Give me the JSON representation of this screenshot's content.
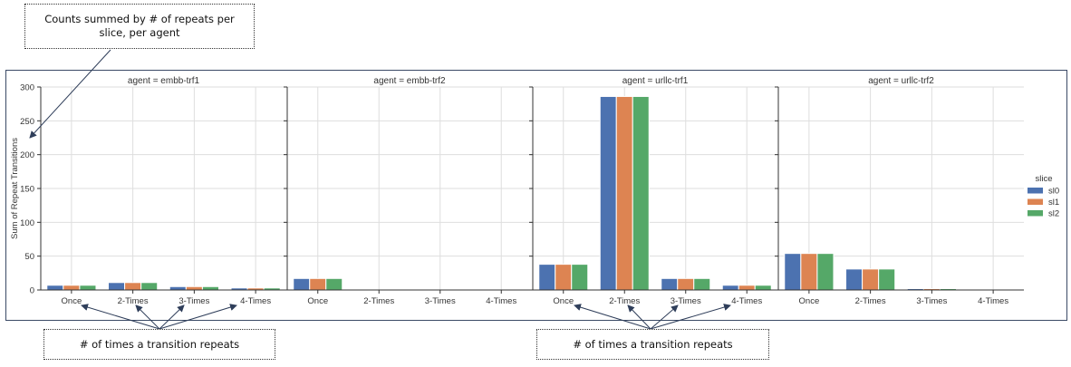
{
  "annotations": {
    "top_note": "Counts summed by # of repeats per slice, per agent",
    "bottom_left_note": "# of times a transition repeats",
    "bottom_right_note": "# of times a transition repeats"
  },
  "chart_data": {
    "type": "bar",
    "ylabel": "Sum of Repeat Transitions",
    "ylim": [
      0,
      300
    ],
    "yticks": [
      0,
      50,
      100,
      150,
      200,
      250,
      300
    ],
    "categories": [
      "Once",
      "2-Times",
      "3-Times",
      "4-Times"
    ],
    "grid": true,
    "legend": {
      "title": "slice",
      "placement": "right",
      "entries": [
        "sl0",
        "sl1",
        "sl2"
      ]
    },
    "colors": {
      "sl0": "#4c72b0",
      "sl1": "#dd8452",
      "sl2": "#55a868"
    },
    "facets": [
      {
        "title": "agent = embb-trf1",
        "series": [
          {
            "name": "sl0",
            "values": [
              7,
              11,
              5,
              3
            ]
          },
          {
            "name": "sl1",
            "values": [
              7,
              11,
              5,
              3
            ]
          },
          {
            "name": "sl2",
            "values": [
              7,
              11,
              5,
              3
            ]
          }
        ]
      },
      {
        "title": "agent = embb-trf2",
        "series": [
          {
            "name": "sl0",
            "values": [
              17,
              0,
              0,
              0
            ]
          },
          {
            "name": "sl1",
            "values": [
              17,
              0,
              0,
              0
            ]
          },
          {
            "name": "sl2",
            "values": [
              17,
              0,
              0,
              0
            ]
          }
        ]
      },
      {
        "title": "agent = urllc-trf1",
        "series": [
          {
            "name": "sl0",
            "values": [
              38,
              286,
              17,
              7
            ]
          },
          {
            "name": "sl1",
            "values": [
              38,
              286,
              17,
              7
            ]
          },
          {
            "name": "sl2",
            "values": [
              38,
              286,
              17,
              7
            ]
          }
        ]
      },
      {
        "title": "agent = urllc-trf2",
        "series": [
          {
            "name": "sl0",
            "values": [
              54,
              31,
              2,
              0
            ]
          },
          {
            "name": "sl1",
            "values": [
              54,
              31,
              2,
              0
            ]
          },
          {
            "name": "sl2",
            "values": [
              54,
              31,
              2,
              0
            ]
          }
        ]
      }
    ]
  }
}
